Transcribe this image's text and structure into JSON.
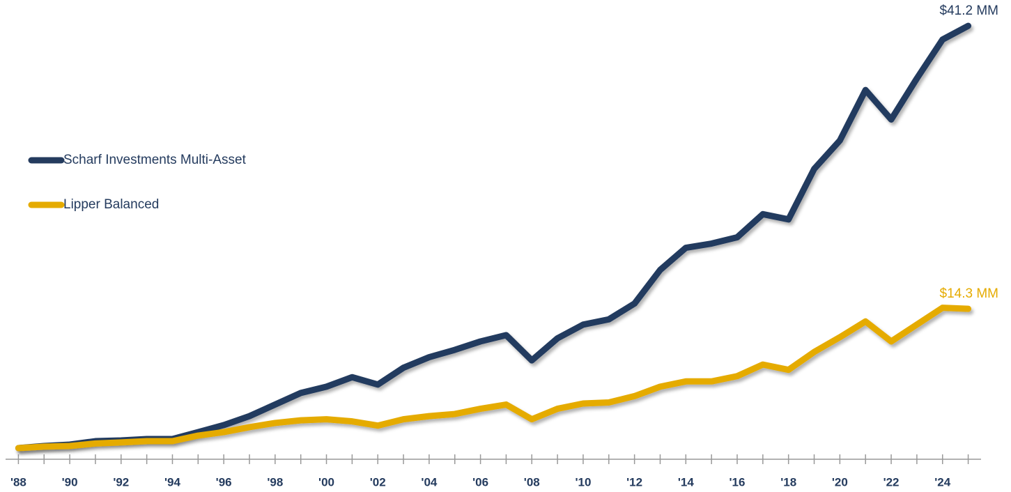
{
  "chart_data": {
    "type": "line",
    "x": [
      1988,
      1989,
      1990,
      1991,
      1992,
      1993,
      1994,
      1995,
      1996,
      1997,
      1998,
      1999,
      2000,
      2001,
      2002,
      2003,
      2004,
      2005,
      2006,
      2007,
      2008,
      2009,
      2010,
      2011,
      2012,
      2013,
      2014,
      2015,
      2016,
      2017,
      2018,
      2019,
      2020,
      2021,
      2022,
      2023,
      2024,
      2025
    ],
    "series": [
      {
        "name": "Scharf Investments Multi-Asset",
        "color": "#243b5e",
        "end_label": "$41.2 MM",
        "values": [
          1.06,
          1.26,
          1.39,
          1.72,
          1.79,
          1.92,
          1.92,
          2.58,
          3.25,
          4.1,
          5.2,
          6.3,
          6.9,
          7.8,
          7.1,
          8.7,
          9.7,
          10.4,
          11.2,
          11.8,
          9.4,
          11.5,
          12.8,
          13.3,
          14.8,
          18.0,
          20.1,
          20.5,
          21.1,
          23.3,
          22.8,
          27.6,
          30.3,
          35.1,
          32.3,
          36.2,
          39.9,
          41.2
        ]
      },
      {
        "name": "Lipper Balanced",
        "color": "#e5ab00",
        "end_label": "$14.3 MM",
        "values": [
          1.06,
          1.2,
          1.26,
          1.5,
          1.6,
          1.72,
          1.72,
          2.25,
          2.58,
          3.05,
          3.45,
          3.7,
          3.8,
          3.6,
          3.2,
          3.8,
          4.1,
          4.3,
          4.8,
          5.2,
          3.8,
          4.8,
          5.3,
          5.4,
          6.0,
          6.9,
          7.4,
          7.4,
          7.9,
          9.0,
          8.5,
          10.2,
          11.6,
          13.1,
          11.2,
          12.8,
          14.4,
          14.3
        ]
      }
    ],
    "xlim": [
      1987.5,
      2025.5
    ],
    "xticks": [
      {
        "value": 1988,
        "label": "'88"
      },
      {
        "value": 1990,
        "label": "'90"
      },
      {
        "value": 1992,
        "label": "'92"
      },
      {
        "value": 1994,
        "label": "'94"
      },
      {
        "value": 1996,
        "label": "'96"
      },
      {
        "value": 1998,
        "label": "'98"
      },
      {
        "value": 2000,
        "label": "'00"
      },
      {
        "value": 2002,
        "label": "'02"
      },
      {
        "value": 2004,
        "label": "'04"
      },
      {
        "value": 2006,
        "label": "'06"
      },
      {
        "value": 2008,
        "label": "'08"
      },
      {
        "value": 2010,
        "label": "'10"
      },
      {
        "value": 2012,
        "label": "'12"
      },
      {
        "value": 2014,
        "label": "'14"
      },
      {
        "value": 2016,
        "label": "'16"
      },
      {
        "value": 2018,
        "label": "'18"
      },
      {
        "value": 2020,
        "label": "'20"
      },
      {
        "value": 2022,
        "label": "'22"
      },
      {
        "value": 2024,
        "label": "'24"
      }
    ],
    "minor_xticks": [
      1989,
      1991,
      1993,
      1995,
      1997,
      1999,
      2001,
      2003,
      2005,
      2007,
      2009,
      2011,
      2013,
      2015,
      2017,
      2019,
      2021,
      2023,
      2025
    ],
    "ylim": [
      0,
      42.2
    ],
    "legend": "left"
  }
}
